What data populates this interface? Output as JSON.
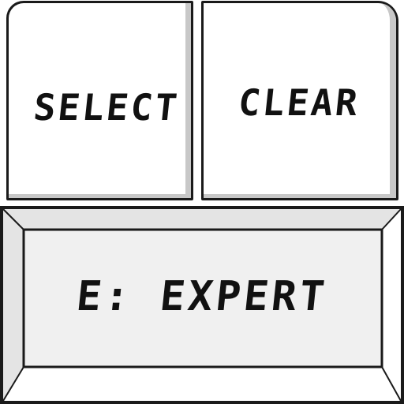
{
  "keypad": {
    "select_key": {
      "label": "SELECT"
    },
    "clear_key": {
      "label": "CLEAR"
    },
    "mode_key": {
      "label": "E: EXPERT"
    }
  },
  "colors": {
    "outline": "#1a1a1a",
    "key_face": "#ffffff",
    "mode_face": "#f0f0f0",
    "bevel_light": "#e4e4e4",
    "bevel_dark": "#c8c8c8",
    "text": "#111111"
  }
}
